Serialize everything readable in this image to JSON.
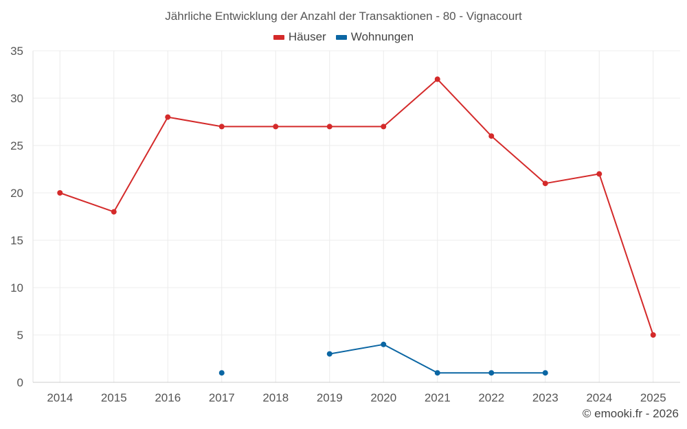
{
  "chart_data": {
    "type": "line",
    "title": "Jährliche Entwicklung der Anzahl der Transaktionen - 80 - Vignacourt",
    "xlabel": "",
    "ylabel": "",
    "categories": [
      "2014",
      "2015",
      "2016",
      "2017",
      "2018",
      "2019",
      "2020",
      "2021",
      "2022",
      "2023",
      "2024",
      "2025"
    ],
    "ylim": [
      0,
      35
    ],
    "yticks": [
      0,
      5,
      10,
      15,
      20,
      25,
      30,
      35
    ],
    "grid": true,
    "legend_position": "top-center",
    "series": [
      {
        "name": "Häuser",
        "color": "#d42a2a",
        "values": [
          20,
          18,
          28,
          27,
          27,
          27,
          27,
          32,
          26,
          21,
          22,
          5
        ]
      },
      {
        "name": "Wohnungen",
        "color": "#0b66a3",
        "values": [
          null,
          null,
          null,
          1,
          null,
          3,
          4,
          1,
          1,
          1,
          null,
          null
        ]
      }
    ]
  },
  "credit": "© emooki.fr - 2026"
}
